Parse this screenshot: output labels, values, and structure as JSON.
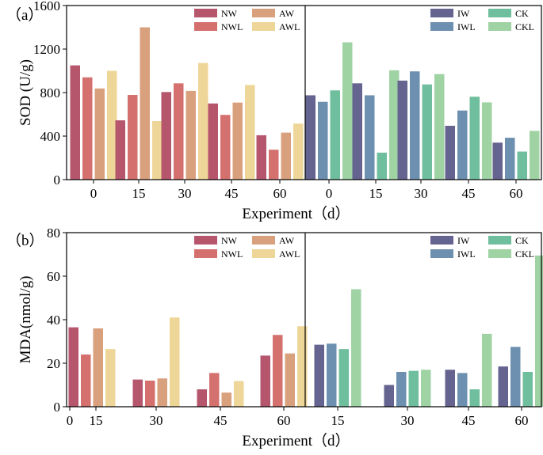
{
  "figure": {
    "colors": {
      "NW": "#b5566d",
      "NWL": "#d4716e",
      "AW": "#d9a07e",
      "AWL": "#eed698",
      "IW": "#65638f",
      "IWL": "#6e90b0",
      "CK": "#6fbe9e",
      "CKL": "#9fd3a4"
    }
  },
  "chart_data": [
    {
      "id": "panel-a",
      "type": "bar",
      "panel_label": "（a）",
      "ylabel": "SOD (U/g)",
      "xlabel": "Experiment（d）",
      "ylim": [
        0,
        1600
      ],
      "yticks": [
        0,
        400,
        800,
        1200,
        1600
      ],
      "xtick_labels": [
        "0",
        "15",
        "30",
        "45",
        "60"
      ],
      "subplots": [
        {
          "name": "left",
          "categories": [
            "0",
            "15",
            "30",
            "45",
            "60"
          ],
          "series": [
            {
              "name": "NW",
              "values": [
                1050,
                545,
                805,
                700,
                408
              ]
            },
            {
              "name": "NWL",
              "values": [
                940,
                778,
                885,
                595,
                275
              ]
            },
            {
              "name": "AW",
              "values": [
                838,
                1400,
                815,
                708,
                432
              ]
            },
            {
              "name": "AWL",
              "values": [
                1000,
                538,
                1072,
                870,
                515
              ]
            }
          ]
        },
        {
          "name": "right",
          "categories": [
            "0",
            "15",
            "30",
            "45",
            "60"
          ],
          "series": [
            {
              "name": "IW",
              "values": [
                775,
                885,
                910,
                495,
                340
              ]
            },
            {
              "name": "IWL",
              "values": [
                715,
                775,
                995,
                635,
                385
              ]
            },
            {
              "name": "CK",
              "values": [
                820,
                248,
                875,
                762,
                258
              ]
            },
            {
              "name": "CKL",
              "values": [
                1262,
                1005,
                970,
                710,
                448
              ]
            }
          ]
        }
      ]
    },
    {
      "id": "panel-b",
      "type": "bar",
      "panel_label": "（b）",
      "ylabel": "MDA(nmol/g)",
      "xlabel": "Experiment（d）",
      "ylim": [
        0,
        80
      ],
      "yticks": [
        0,
        20,
        40,
        60,
        80
      ],
      "xtick_labels": [
        "0",
        "15",
        "30",
        "45",
        "60"
      ],
      "subplots": [
        {
          "name": "left",
          "categories": [
            "15",
            "30",
            "45",
            "60"
          ],
          "series": [
            {
              "name": "NW",
              "values": [
                36.5,
                12.5,
                8.0,
                23.5
              ]
            },
            {
              "name": "NWL",
              "values": [
                24.0,
                12.0,
                15.5,
                33.0
              ]
            },
            {
              "name": "AW",
              "values": [
                36.0,
                13.0,
                6.5,
                24.5
              ]
            },
            {
              "name": "AWL",
              "values": [
                26.5,
                41.0,
                11.8,
                37.0
              ]
            }
          ]
        },
        {
          "name": "right",
          "categories": [
            "15",
            "30",
            "45",
            "60"
          ],
          "series": [
            {
              "name": "IW",
              "values": [
                28.5,
                10.0,
                17.0,
                18.5
              ]
            },
            {
              "name": "IWL",
              "values": [
                29.0,
                16.0,
                15.5,
                27.5
              ]
            },
            {
              "name": "CK",
              "values": [
                26.5,
                16.5,
                8.0,
                16.0
              ]
            },
            {
              "name": "CKL",
              "values": [
                54.0,
                17.0,
                33.5,
                69.5
              ]
            }
          ]
        }
      ]
    }
  ]
}
